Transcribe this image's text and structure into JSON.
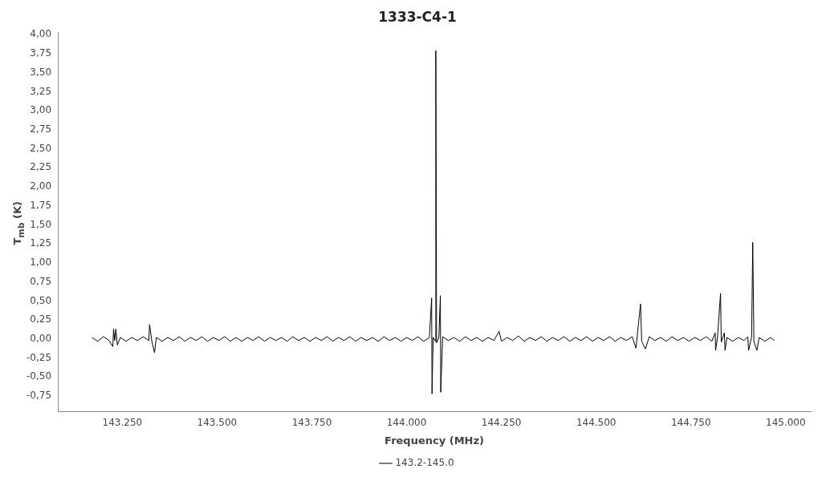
{
  "chart_data": {
    "type": "line",
    "title": "1333-C4-1",
    "xlabel": "Frequency (MHz)",
    "ylabel": "T$_{mb}$ (K)",
    "legend": "bottom",
    "grid": false,
    "marker": "none",
    "line_style": "solid",
    "xlim": [
      143080,
      145066
    ],
    "ylim": [
      -0.95,
      4.03
    ],
    "xticks": [
      {
        "value": 143250,
        "label": "143.250"
      },
      {
        "value": 143500,
        "label": "143.500"
      },
      {
        "value": 143750,
        "label": "143.750"
      },
      {
        "value": 144000,
        "label": "144.000"
      },
      {
        "value": 144250,
        "label": "144.250"
      },
      {
        "value": 144500,
        "label": "144.500"
      },
      {
        "value": 144750,
        "label": "144.750"
      },
      {
        "value": 145000,
        "label": "145.000"
      }
    ],
    "yticks": [
      {
        "value": -0.75,
        "label": "-0,75"
      },
      {
        "value": -0.5,
        "label": "-0,50"
      },
      {
        "value": -0.25,
        "label": "-0,25"
      },
      {
        "value": 0,
        "label": "0,00"
      },
      {
        "value": 0.25,
        "label": "0,25"
      },
      {
        "value": 0.5,
        "label": "0,50"
      },
      {
        "value": 0.75,
        "label": "0,75"
      },
      {
        "value": 1,
        "label": "1,00"
      },
      {
        "value": 1.25,
        "label": "1,25"
      },
      {
        "value": 1.5,
        "label": "1,50"
      },
      {
        "value": 1.75,
        "label": "1,75"
      },
      {
        "value": 2,
        "label": "2,00"
      },
      {
        "value": 2.25,
        "label": "2,25"
      },
      {
        "value": 2.5,
        "label": "2,50"
      },
      {
        "value": 2.75,
        "label": "2,75"
      },
      {
        "value": 3,
        "label": "3,00"
      },
      {
        "value": 3.25,
        "label": "3,25"
      },
      {
        "value": 3.5,
        "label": "3,50"
      },
      {
        "value": 3.75,
        "label": "3,75"
      },
      {
        "value": 4,
        "label": "4,00"
      }
    ],
    "series": [
      {
        "name": "143.2-145.0",
        "color": "#000000",
        "x": [
          143170,
          143185,
          143200,
          143215,
          143225,
          143227,
          143230,
          143233,
          143237,
          143245,
          143260,
          143275,
          143290,
          143305,
          143320,
          143322,
          143328,
          143335,
          143340,
          143355,
          143370,
          143385,
          143400,
          143415,
          143430,
          143445,
          143460,
          143475,
          143490,
          143505,
          143520,
          143535,
          143550,
          143565,
          143580,
          143595,
          143610,
          143625,
          143640,
          143655,
          143670,
          143685,
          143700,
          143715,
          143730,
          143745,
          143760,
          143775,
          143790,
          143805,
          143820,
          143835,
          143850,
          143865,
          143880,
          143895,
          143910,
          143925,
          143940,
          143955,
          143970,
          143985,
          144000,
          144015,
          144030,
          144045,
          144060,
          144066,
          144067,
          144070,
          144076,
          144077,
          144079,
          144085,
          144089,
          144090,
          144095,
          144110,
          144125,
          144140,
          144155,
          144170,
          144185,
          144200,
          144215,
          144230,
          144244,
          144250,
          144265,
          144280,
          144295,
          144310,
          144325,
          144340,
          144355,
          144370,
          144385,
          144400,
          144415,
          144430,
          144445,
          144460,
          144475,
          144490,
          144505,
          144520,
          144535,
          144550,
          144565,
          144580,
          144595,
          144605,
          144617,
          144620,
          144630,
          144640,
          144655,
          144670,
          144685,
          144700,
          144715,
          144730,
          144745,
          144760,
          144775,
          144790,
          144805,
          144814,
          144815,
          144820,
          144828,
          144830,
          144838,
          144840,
          144845,
          144860,
          144875,
          144890,
          144900,
          144902,
          144910,
          144913,
          144916,
          144924,
          144930,
          144945,
          144960,
          144970
        ],
        "values": [
          0.02,
          -0.03,
          0.03,
          -0.02,
          -0.1,
          0.13,
          -0.02,
          0.13,
          -0.08,
          0.02,
          -0.03,
          0.02,
          -0.02,
          0.03,
          -0.02,
          0.19,
          -0.03,
          -0.18,
          0.02,
          -0.03,
          0.02,
          -0.02,
          0.03,
          -0.03,
          0.02,
          -0.02,
          0.03,
          -0.03,
          0.02,
          -0.02,
          0.03,
          -0.03,
          0.02,
          -0.03,
          0.02,
          -0.02,
          0.03,
          -0.03,
          0.02,
          -0.02,
          0.02,
          -0.03,
          0.03,
          -0.02,
          0.02,
          -0.03,
          0.02,
          -0.02,
          0.03,
          -0.03,
          0.02,
          -0.02,
          0.03,
          -0.03,
          0.02,
          -0.02,
          0.02,
          -0.03,
          0.03,
          -0.02,
          0.02,
          -0.03,
          0.02,
          -0.02,
          0.03,
          -0.03,
          0.02,
          0.54,
          -0.72,
          0.02,
          -0.03,
          3.79,
          -0.05,
          0.02,
          0.57,
          -0.7,
          0.03,
          -0.02,
          0.02,
          -0.03,
          0.03,
          -0.02,
          0.02,
          -0.03,
          0.02,
          -0.02,
          0.1,
          -0.03,
          0.02,
          -0.02,
          0.04,
          -0.03,
          0.02,
          -0.02,
          0.03,
          -0.03,
          0.02,
          -0.02,
          0.03,
          -0.03,
          0.02,
          -0.02,
          0.03,
          -0.03,
          0.02,
          -0.02,
          0.03,
          -0.03,
          0.02,
          -0.02,
          0.03,
          -0.12,
          0.46,
          -0.03,
          -0.13,
          0.03,
          -0.02,
          0.02,
          -0.03,
          0.03,
          -0.02,
          0.02,
          -0.03,
          0.02,
          -0.02,
          0.03,
          -0.03,
          0.08,
          -0.15,
          0.02,
          0.6,
          -0.04,
          0.08,
          -0.15,
          0.02,
          -0.03,
          0.02,
          -0.02,
          0.03,
          -0.15,
          0.03,
          1.27,
          -0.03,
          -0.15,
          0.02,
          -0.03,
          0.02,
          -0.02
        ]
      }
    ]
  }
}
